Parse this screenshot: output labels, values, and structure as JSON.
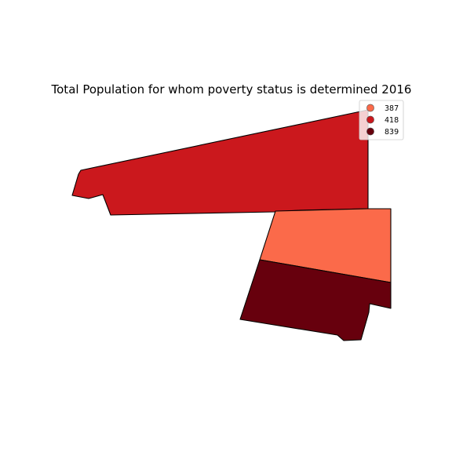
{
  "map": {
    "title": "Total Population for whom poverty status is determined 2016",
    "regions": [
      {
        "name": "north-region",
        "value": 418,
        "color": "#cb181d"
      },
      {
        "name": "middle-region",
        "value": 387,
        "color": "#fb6a4a"
      },
      {
        "name": "south-region",
        "value": 839,
        "color": "#67000d"
      }
    ],
    "legend": {
      "placement": "top-right",
      "items": [
        {
          "label": "387",
          "color": "#fb6a4a"
        },
        {
          "label": "418",
          "color": "#cb181d"
        },
        {
          "label": "839",
          "color": "#67000d"
        }
      ]
    }
  }
}
